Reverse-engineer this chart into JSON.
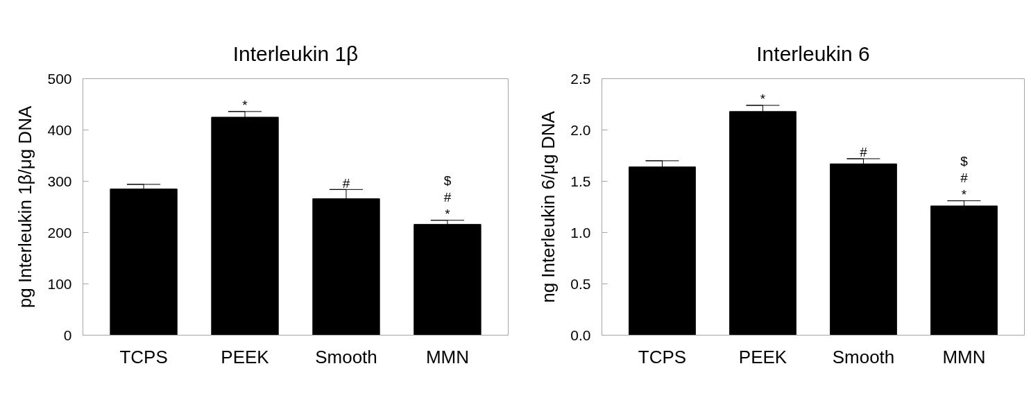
{
  "chart_data": [
    {
      "type": "bar",
      "title": "Interleukin 1β",
      "ylabel": "pg Interleukin 1β/μg DNA",
      "categories": [
        "TCPS",
        "PEEK",
        "Smooth",
        "MMN"
      ],
      "values": [
        285,
        425,
        266,
        216
      ],
      "errors": [
        9,
        11,
        18,
        8
      ],
      "color": "#000000",
      "ylim": [
        0,
        500
      ],
      "yticks": [
        0,
        100,
        200,
        300,
        400,
        500
      ],
      "annotations": [
        {
          "text": "*",
          "x": "PEEK",
          "y": 425
        },
        {
          "text": "#",
          "x": "Smooth",
          "y": 266
        },
        {
          "text": "$",
          "x": "MMN",
          "y": 216
        },
        {
          "text": "#",
          "x": "MMN",
          "y": 216
        },
        {
          "text": "*",
          "x": "MMN",
          "y": 216
        }
      ]
    },
    {
      "type": "bar",
      "title": "Interleukin 6",
      "ylabel": "ng Interleukin 6/μg DNA",
      "categories": [
        "TCPS",
        "PEEK",
        "Smooth",
        "MMN"
      ],
      "values": [
        1.64,
        2.18,
        1.67,
        1.26
      ],
      "errors": [
        0.06,
        0.06,
        0.05,
        0.05
      ],
      "color": "#000000",
      "ylim": [
        0,
        2.5
      ],
      "yticks": [
        {
          "value": 0,
          "label": "0.0"
        },
        0.5,
        {
          "value": 1,
          "label": "1.0"
        },
        1.5,
        {
          "value": 2,
          "label": "2.0"
        },
        2.5
      ],
      "annotations": [
        {
          "text": "*",
          "x": "PEEK",
          "y": 2.18
        },
        {
          "text": "#",
          "x": "Smooth",
          "y": 1.67
        },
        {
          "text": "$",
          "x": "MMN",
          "y": 1.26
        },
        {
          "text": "#",
          "x": "MMN",
          "y": 1.26
        },
        {
          "text": "*",
          "x": "MMN",
          "y": 1.26
        }
      ]
    }
  ]
}
